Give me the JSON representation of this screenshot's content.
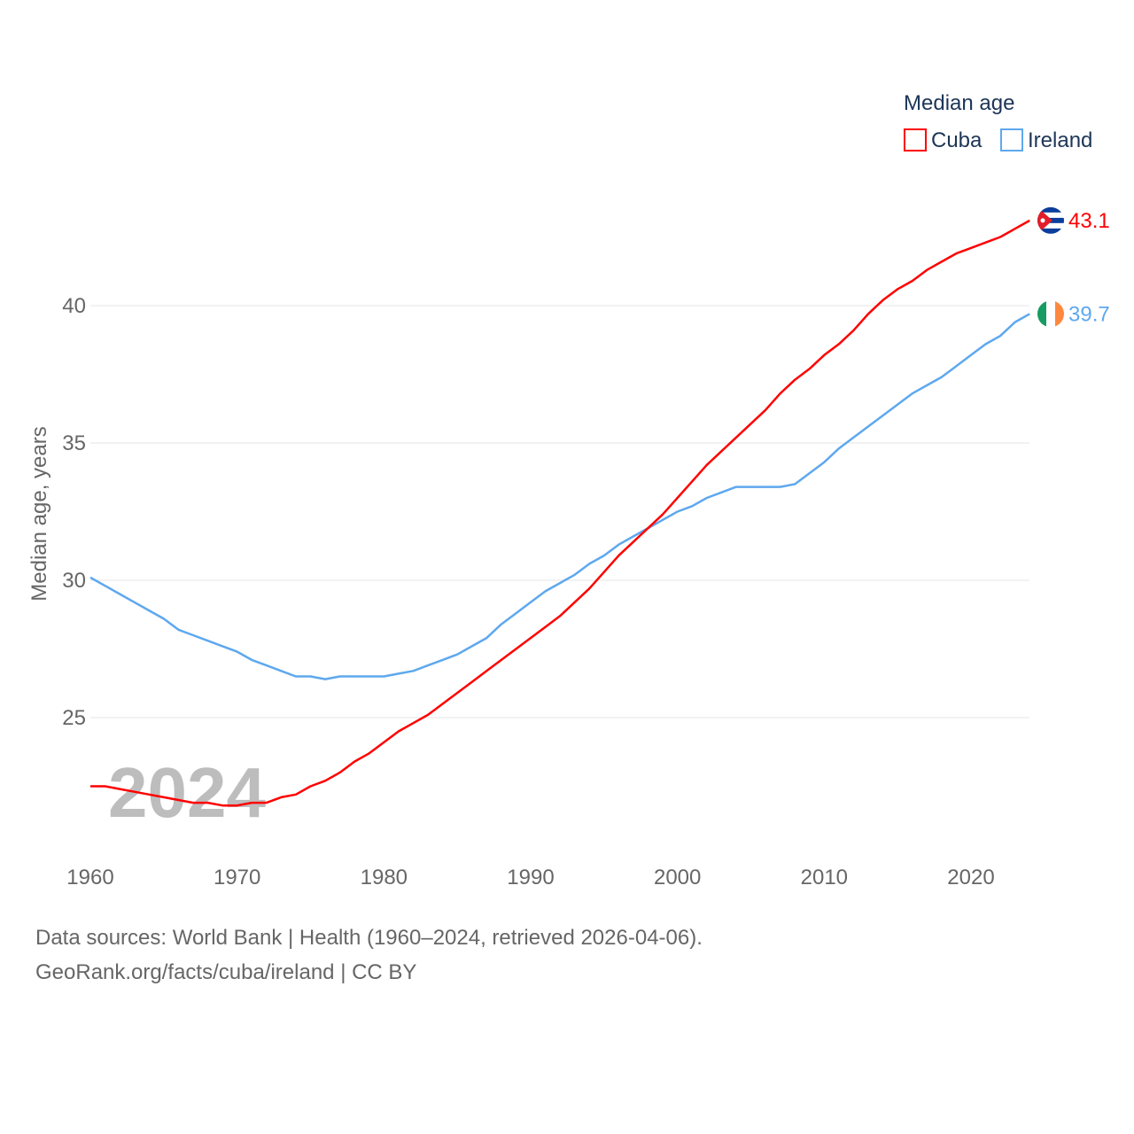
{
  "chart_data": {
    "type": "line",
    "title": "Median age",
    "xlabel": "",
    "ylabel": "Median age, years",
    "xlim": [
      1960,
      2024
    ],
    "ylim": [
      20.5,
      45
    ],
    "x_ticks": [
      1960,
      1970,
      1980,
      1990,
      2000,
      2010,
      2020
    ],
    "y_ticks": [
      25,
      30,
      35,
      40
    ],
    "grid": true,
    "legend_placement": "top-right",
    "year_label": "2024",
    "x": [
      1960,
      1961,
      1962,
      1963,
      1964,
      1965,
      1966,
      1967,
      1968,
      1969,
      1970,
      1971,
      1972,
      1973,
      1974,
      1975,
      1976,
      1977,
      1978,
      1979,
      1980,
      1981,
      1982,
      1983,
      1984,
      1985,
      1986,
      1987,
      1988,
      1989,
      1990,
      1991,
      1992,
      1993,
      1994,
      1995,
      1996,
      1997,
      1998,
      1999,
      2000,
      2001,
      2002,
      2003,
      2004,
      2005,
      2006,
      2007,
      2008,
      2009,
      2010,
      2011,
      2012,
      2013,
      2014,
      2015,
      2016,
      2017,
      2018,
      2019,
      2020,
      2021,
      2022,
      2023,
      2024
    ],
    "series": [
      {
        "name": "Cuba",
        "color": "#ff0000",
        "end_label": "43.1",
        "values": [
          22.5,
          22.5,
          22.4,
          22.3,
          22.2,
          22.1,
          22.0,
          21.9,
          21.9,
          21.8,
          21.8,
          21.9,
          21.9,
          22.1,
          22.2,
          22.5,
          22.7,
          23.0,
          23.4,
          23.7,
          24.1,
          24.5,
          24.8,
          25.1,
          25.5,
          25.9,
          26.3,
          26.7,
          27.1,
          27.5,
          27.9,
          28.3,
          28.7,
          29.2,
          29.7,
          30.3,
          30.9,
          31.4,
          31.9,
          32.4,
          33.0,
          33.6,
          34.2,
          34.7,
          35.2,
          35.7,
          36.2,
          36.8,
          37.3,
          37.7,
          38.2,
          38.6,
          39.1,
          39.7,
          40.2,
          40.6,
          40.9,
          41.3,
          41.6,
          41.9,
          42.1,
          42.3,
          42.5,
          42.8,
          43.1
        ]
      },
      {
        "name": "Ireland",
        "color": "#5ea8ee",
        "end_label": "39.7",
        "values": [
          30.1,
          29.8,
          29.5,
          29.2,
          28.9,
          28.6,
          28.2,
          28.0,
          27.8,
          27.6,
          27.4,
          27.1,
          26.9,
          26.7,
          26.5,
          26.5,
          26.4,
          26.5,
          26.5,
          26.5,
          26.5,
          26.6,
          26.7,
          26.9,
          27.1,
          27.3,
          27.6,
          27.9,
          28.4,
          28.8,
          29.2,
          29.6,
          29.9,
          30.2,
          30.6,
          30.9,
          31.3,
          31.6,
          31.9,
          32.2,
          32.5,
          32.7,
          33.0,
          33.2,
          33.4,
          33.4,
          33.4,
          33.4,
          33.5,
          33.9,
          34.3,
          34.8,
          35.2,
          35.6,
          36.0,
          36.4,
          36.8,
          37.1,
          37.4,
          37.8,
          38.2,
          38.6,
          38.9,
          39.4,
          39.7
        ]
      }
    ]
  },
  "footer": {
    "line1": "Data sources: World Bank | Health (1960–2024, retrieved 2026-04-06).",
    "line2": "GeoRank.org/facts/cuba/ireland | CC BY"
  }
}
